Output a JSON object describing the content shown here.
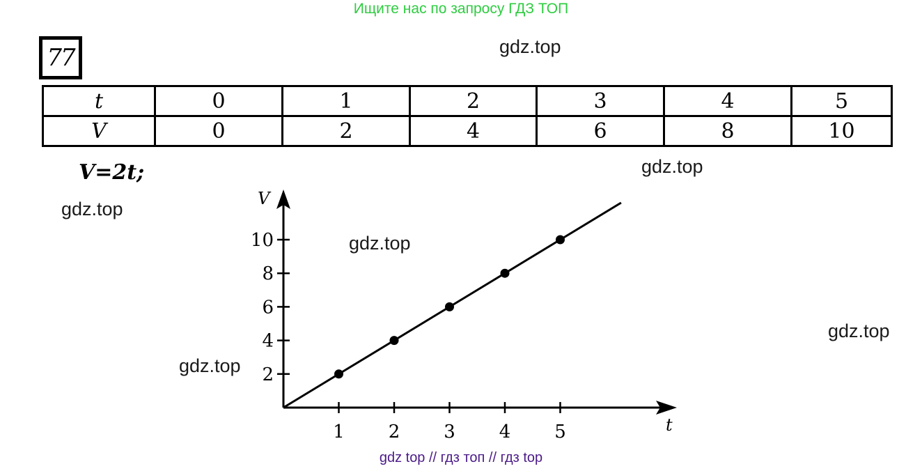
{
  "banner": "Ищите нас по запросу ГДЗ ТОП",
  "exercise_number": "77",
  "table": {
    "row_labels": [
      "t",
      "V"
    ],
    "t_values": [
      "0",
      "1",
      "2",
      "3",
      "4",
      "5"
    ],
    "v_values": [
      "0",
      "2",
      "4",
      "6",
      "8",
      "10"
    ]
  },
  "formula": "V=2t;",
  "watermarks": [
    "gdz.top",
    "gdz.top",
    "gdz.top",
    "gdz.top",
    "gdz.top",
    "gdz.top"
  ],
  "footer": "gdz top  //  гдз топ  //  гдз top",
  "chart_data": {
    "type": "line",
    "xlabel": "t",
    "ylabel": "V",
    "x": [
      0,
      1,
      2,
      3,
      4,
      5
    ],
    "y": [
      0,
      2,
      4,
      6,
      8,
      10
    ],
    "markers": [
      [
        1,
        2
      ],
      [
        2,
        4
      ],
      [
        3,
        6
      ],
      [
        4,
        8
      ],
      [
        5,
        10
      ]
    ],
    "line_extends_to_x": 6.1,
    "xticks": [
      "1",
      "2",
      "3",
      "4",
      "5"
    ],
    "yticks": [
      "2",
      "4",
      "6",
      "8",
      "10"
    ],
    "xlim": [
      0,
      6.1
    ],
    "ylim": [
      0,
      12
    ],
    "grid": false,
    "colors": {
      "ink": "#000000",
      "banner": "#2ecc40",
      "footer": "#4b1a87"
    }
  }
}
